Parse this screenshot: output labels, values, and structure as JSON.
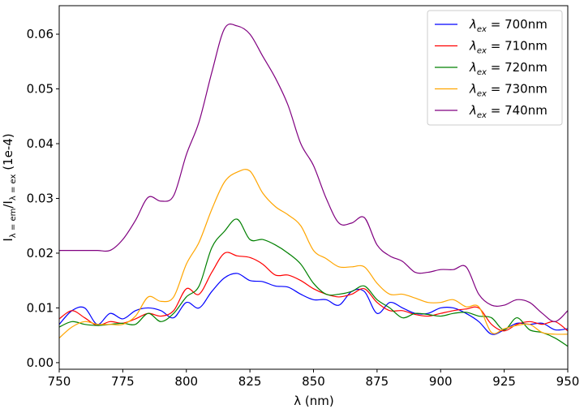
{
  "chart_data": {
    "type": "line",
    "title": "",
    "xlabel": "λ (nm)",
    "ylabel": "I_{λ=em}/I_{λ=ex} (1e-4)",
    "ylabel_parts": {
      "main": "I",
      "sub_em": "λ = em",
      "mid": "/I",
      "sub_ex": "λ = ex",
      "tail": " (1e-4)"
    },
    "xlim": [
      750,
      950
    ],
    "ylim": [
      -0.0012,
      0.0652
    ],
    "xticks": [
      750,
      775,
      800,
      825,
      850,
      875,
      900,
      925,
      950
    ],
    "yticks": [
      0.0,
      0.01,
      0.02,
      0.03,
      0.04,
      0.05,
      0.06
    ],
    "ytick_labels": [
      "0.00",
      "0.01",
      "0.02",
      "0.03",
      "0.04",
      "0.05",
      "0.06"
    ],
    "legend_position": "top-right",
    "x": [
      750,
      755,
      760,
      765,
      770,
      775,
      780,
      785,
      790,
      795,
      800,
      805,
      810,
      815,
      820,
      825,
      830,
      835,
      840,
      845,
      850,
      855,
      860,
      865,
      870,
      875,
      880,
      885,
      890,
      895,
      900,
      905,
      910,
      915,
      920,
      925,
      930,
      935,
      940,
      945,
      950
    ],
    "series": [
      {
        "name": "700nm",
        "legend_symbol": "λ",
        "legend_sub": "ex",
        "legend_eq": " = 700nm",
        "color": "#0000ff",
        "values": [
          0.007,
          0.0095,
          0.01,
          0.007,
          0.009,
          0.008,
          0.0095,
          0.01,
          0.0095,
          0.0082,
          0.011,
          0.01,
          0.013,
          0.0155,
          0.0163,
          0.015,
          0.0148,
          0.014,
          0.0138,
          0.0125,
          0.0115,
          0.0115,
          0.0105,
          0.013,
          0.013,
          0.009,
          0.011,
          0.01,
          0.009,
          0.009,
          0.01,
          0.01,
          0.009,
          0.0075,
          0.0052,
          0.006,
          0.0072,
          0.007,
          0.0072,
          0.006,
          0.0062
        ]
      },
      {
        "name": "710nm",
        "legend_symbol": "λ",
        "legend_sub": "ex",
        "legend_eq": " = 710nm",
        "color": "#ff0000",
        "values": [
          0.008,
          0.0095,
          0.0082,
          0.0068,
          0.0075,
          0.0072,
          0.008,
          0.009,
          0.0085,
          0.0095,
          0.0135,
          0.0125,
          0.0165,
          0.02,
          0.0195,
          0.0192,
          0.018,
          0.016,
          0.016,
          0.015,
          0.0135,
          0.0125,
          0.012,
          0.0125,
          0.0135,
          0.011,
          0.0095,
          0.0095,
          0.0088,
          0.0085,
          0.009,
          0.0095,
          0.0098,
          0.01,
          0.007,
          0.0058,
          0.007,
          0.0075,
          0.007,
          0.0075,
          0.0058
        ]
      },
      {
        "name": "720nm",
        "legend_symbol": "λ",
        "legend_sub": "ex",
        "legend_eq": " = 720nm",
        "color": "#008000",
        "values": [
          0.0065,
          0.0075,
          0.007,
          0.0068,
          0.007,
          0.0072,
          0.007,
          0.009,
          0.0075,
          0.009,
          0.012,
          0.014,
          0.021,
          0.024,
          0.0262,
          0.0225,
          0.0225,
          0.0215,
          0.02,
          0.018,
          0.0145,
          0.0125,
          0.0125,
          0.013,
          0.014,
          0.0115,
          0.01,
          0.0082,
          0.009,
          0.0088,
          0.0085,
          0.009,
          0.0092,
          0.0085,
          0.0082,
          0.006,
          0.0082,
          0.006,
          0.0055,
          0.0045,
          0.003
        ]
      },
      {
        "name": "730nm",
        "legend_symbol": "λ",
        "legend_sub": "ex",
        "legend_eq": " = 730nm",
        "color": "#ffa500",
        "values": [
          0.0045,
          0.0065,
          0.0075,
          0.007,
          0.007,
          0.007,
          0.0085,
          0.012,
          0.0112,
          0.012,
          0.018,
          0.022,
          0.028,
          0.033,
          0.0348,
          0.035,
          0.031,
          0.0285,
          0.027,
          0.025,
          0.0205,
          0.019,
          0.0175,
          0.0175,
          0.0175,
          0.0145,
          0.0125,
          0.0125,
          0.0118,
          0.011,
          0.011,
          0.0115,
          0.0102,
          0.0102,
          0.0055,
          0.0062,
          0.0068,
          0.007,
          0.0055,
          0.0052,
          0.0052
        ]
      },
      {
        "name": "740nm",
        "legend_symbol": "λ",
        "legend_sub": "ex",
        "legend_eq": " = 740nm",
        "color": "#800080",
        "values": [
          0.0205,
          0.0205,
          0.0205,
          0.0205,
          0.0205,
          0.0225,
          0.026,
          0.0302,
          0.0295,
          0.0305,
          0.038,
          0.044,
          0.053,
          0.061,
          0.0615,
          0.06,
          0.056,
          0.052,
          0.047,
          0.04,
          0.036,
          0.03,
          0.0255,
          0.0255,
          0.0265,
          0.0215,
          0.0195,
          0.0185,
          0.0165,
          0.0165,
          0.017,
          0.017,
          0.0175,
          0.0125,
          0.0105,
          0.0105,
          0.0115,
          0.011,
          0.009,
          0.0075,
          0.0095
        ]
      }
    ]
  }
}
